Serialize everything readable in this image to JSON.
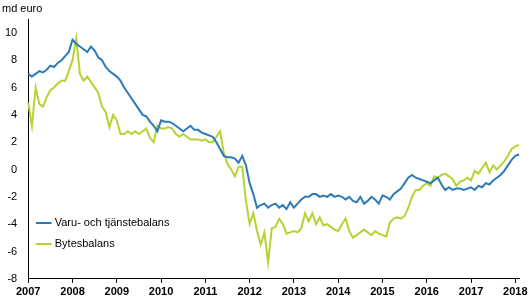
{
  "chart_data": {
    "type": "line",
    "ylabel": "md euro",
    "categories": [
      "2007",
      null,
      null,
      null,
      null,
      null,
      null,
      null,
      null,
      null,
      null,
      null,
      "2008",
      null,
      null,
      null,
      null,
      null,
      null,
      null,
      null,
      null,
      null,
      null,
      "2009",
      null,
      null,
      null,
      null,
      null,
      null,
      null,
      null,
      null,
      null,
      null,
      "2010",
      null,
      null,
      null,
      null,
      null,
      null,
      null,
      null,
      null,
      null,
      null,
      "2011",
      null,
      null,
      null,
      null,
      null,
      null,
      null,
      null,
      null,
      null,
      null,
      "2012",
      null,
      null,
      null,
      null,
      null,
      null,
      null,
      null,
      null,
      null,
      null,
      "2013",
      null,
      null,
      null,
      null,
      null,
      null,
      null,
      null,
      null,
      null,
      null,
      "2014",
      null,
      null,
      null,
      null,
      null,
      null,
      null,
      null,
      null,
      null,
      null,
      "2015",
      null,
      null,
      null,
      null,
      null,
      null,
      null,
      null,
      null,
      null,
      null,
      "2016",
      null,
      null,
      null,
      null,
      null,
      null,
      null,
      null,
      null,
      null,
      null,
      "2017",
      null,
      null,
      null,
      null,
      null,
      null,
      null,
      null,
      null,
      null,
      null,
      "2018",
      null
    ],
    "series": [
      {
        "name": "Varu- och tjänstebalans",
        "color": "#2b7bb9",
        "values": [
          7.0,
          6.8,
          7.0,
          7.2,
          7.1,
          7.3,
          7.6,
          7.5,
          7.8,
          8.0,
          8.3,
          8.6,
          9.5,
          9.2,
          9.0,
          8.8,
          8.6,
          9.0,
          8.7,
          8.2,
          8.0,
          7.5,
          7.2,
          7.0,
          6.8,
          6.5,
          6.0,
          5.6,
          5.2,
          4.8,
          4.4,
          4.0,
          3.9,
          3.5,
          3.2,
          2.8,
          3.6,
          3.5,
          3.5,
          3.4,
          3.2,
          3.0,
          2.8,
          3.0,
          3.2,
          2.9,
          2.9,
          2.7,
          2.6,
          2.5,
          2.4,
          2.0,
          1.5,
          1.0,
          0.9,
          0.9,
          0.8,
          0.5,
          1.0,
          0.3,
          -1.0,
          -1.8,
          -2.8,
          -2.6,
          -2.5,
          -2.8,
          -2.6,
          -2.5,
          -2.8,
          -2.6,
          -2.9,
          -2.4,
          -2.8,
          -2.5,
          -2.2,
          -2.0,
          -2.0,
          -1.8,
          -1.8,
          -2.0,
          -1.9,
          -2.0,
          -1.8,
          -2.0,
          -1.9,
          -2.0,
          -2.2,
          -2.0,
          -2.3,
          -2.4,
          -2.0,
          -2.5,
          -2.3,
          -2.0,
          -2.2,
          -2.5,
          -1.9,
          -2.0,
          -2.2,
          -1.8,
          -1.6,
          -1.4,
          -1.0,
          -0.6,
          -0.4,
          -0.6,
          -0.7,
          -0.8,
          -0.9,
          -1.0,
          -0.8,
          -0.6,
          -1.1,
          -1.5,
          -1.3,
          -1.5,
          -1.4,
          -1.4,
          -1.5,
          -1.4,
          -1.3,
          -1.5,
          -1.2,
          -1.3,
          -1.0,
          -1.1,
          -0.8,
          -0.6,
          -0.4,
          -0.1,
          0.3,
          0.7,
          1.0,
          1.1
        ]
      },
      {
        "name": "Bytesbalans",
        "color": "#b5d334",
        "values": [
          4.9,
          3.2,
          6.0,
          4.8,
          4.6,
          5.3,
          5.8,
          6.0,
          6.3,
          6.5,
          6.5,
          7.2,
          8.0,
          9.6,
          7.0,
          6.5,
          6.8,
          6.4,
          6.0,
          5.6,
          4.6,
          4.2,
          3.1,
          4.0,
          3.6,
          2.6,
          2.6,
          2.8,
          2.6,
          2.8,
          2.6,
          2.8,
          3.0,
          2.3,
          2.0,
          3.2,
          3.0,
          3.0,
          3.1,
          3.0,
          2.6,
          2.4,
          2.6,
          2.4,
          2.2,
          2.2,
          2.2,
          2.1,
          2.2,
          2.0,
          2.0,
          2.4,
          2.8,
          1.2,
          0.4,
          0.0,
          -0.5,
          0.2,
          0.2,
          -2.3,
          -4.0,
          -3.2,
          -4.5,
          -5.5,
          -4.6,
          -6.8,
          -4.3,
          -4.2,
          -3.6,
          -4.0,
          -4.7,
          -4.6,
          -4.5,
          -4.6,
          -4.3,
          -3.2,
          -3.8,
          -3.2,
          -4.0,
          -3.5,
          -4.1,
          -4.0,
          -4.2,
          -4.4,
          -4.5,
          -4.0,
          -3.6,
          -4.5,
          -5.0,
          -4.8,
          -4.6,
          -4.4,
          -4.6,
          -4.8,
          -4.5,
          -4.7,
          -4.8,
          -4.9,
          -3.9,
          -3.6,
          -3.5,
          -3.6,
          -3.4,
          -2.8,
          -2.0,
          -1.5,
          -1.5,
          -1.2,
          -1.0,
          -1.2,
          -0.5,
          -0.6,
          -0.4,
          -0.3,
          -0.5,
          -0.7,
          -1.2,
          -0.9,
          -0.8,
          -0.6,
          -0.8,
          -0.1,
          -0.3,
          0.1,
          0.5,
          -0.2,
          0.3,
          0.0,
          0.3,
          0.6,
          1.0,
          1.5,
          1.7,
          1.8
        ]
      }
    ],
    "ylim": [
      -8,
      11
    ],
    "yticks": [
      -8,
      -6,
      -4,
      -2,
      0,
      2,
      4,
      6,
      8,
      10
    ],
    "grid": false,
    "legend": "upper right"
  }
}
